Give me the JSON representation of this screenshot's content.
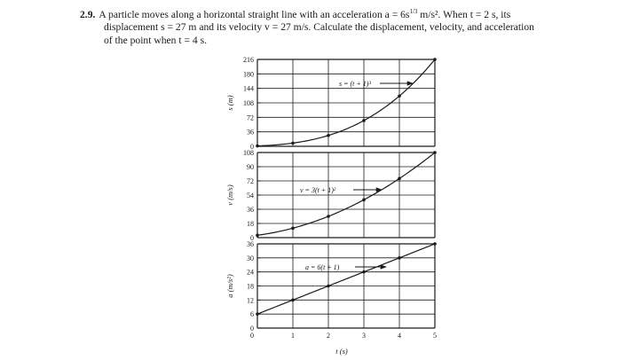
{
  "problem": {
    "number": "2.9.",
    "line1": "A particle moves along a horizontal straight line with an acceleration a = 6s",
    "line1_exp": "1/3",
    "line1_tail": " m/s². When t = 2 s, its",
    "line2": "displacement s = 27 m and its velocity v = 27 m/s. Calculate the displacement, velocity, and acceleration",
    "line3": "of the point when t = 4 s."
  },
  "chart_data": [
    {
      "type": "line",
      "ylabel": "s (m)",
      "yticks": [
        "216",
        "180",
        "144",
        "108",
        "72",
        "36",
        "0"
      ],
      "ylim": [
        0,
        216
      ],
      "xlim": [
        0,
        5
      ],
      "grid": true,
      "annotation": "s = (t + 1)³",
      "points": [
        [
          0,
          1
        ],
        [
          1,
          8
        ],
        [
          2,
          27
        ],
        [
          3,
          64
        ],
        [
          4,
          125
        ],
        [
          5,
          216
        ]
      ]
    },
    {
      "type": "line",
      "ylabel": "v (m/s)",
      "yticks": [
        "108",
        "90",
        "72",
        "54",
        "36",
        "18",
        "0"
      ],
      "ylim": [
        0,
        108
      ],
      "xlim": [
        0,
        5
      ],
      "grid": true,
      "annotation": "v = 3(t + 1)²",
      "points": [
        [
          0,
          3
        ],
        [
          1,
          12
        ],
        [
          2,
          27
        ],
        [
          3,
          48
        ],
        [
          4,
          75
        ],
        [
          5,
          108
        ]
      ]
    },
    {
      "type": "line",
      "ylabel": "a (m/s²)",
      "yticks": [
        "36",
        "30",
        "24",
        "18",
        "12",
        "6",
        "0"
      ],
      "ylim": [
        0,
        36
      ],
      "xlim": [
        0,
        5
      ],
      "grid": true,
      "annotation": "a = 6(t + 1)",
      "points": [
        [
          0,
          6
        ],
        [
          1,
          12
        ],
        [
          2,
          18
        ],
        [
          3,
          24
        ],
        [
          4,
          30
        ],
        [
          5,
          36
        ]
      ]
    }
  ],
  "x_axis": {
    "ticks": [
      "1",
      "2",
      "3",
      "4",
      "5"
    ],
    "label": "t (s)"
  }
}
